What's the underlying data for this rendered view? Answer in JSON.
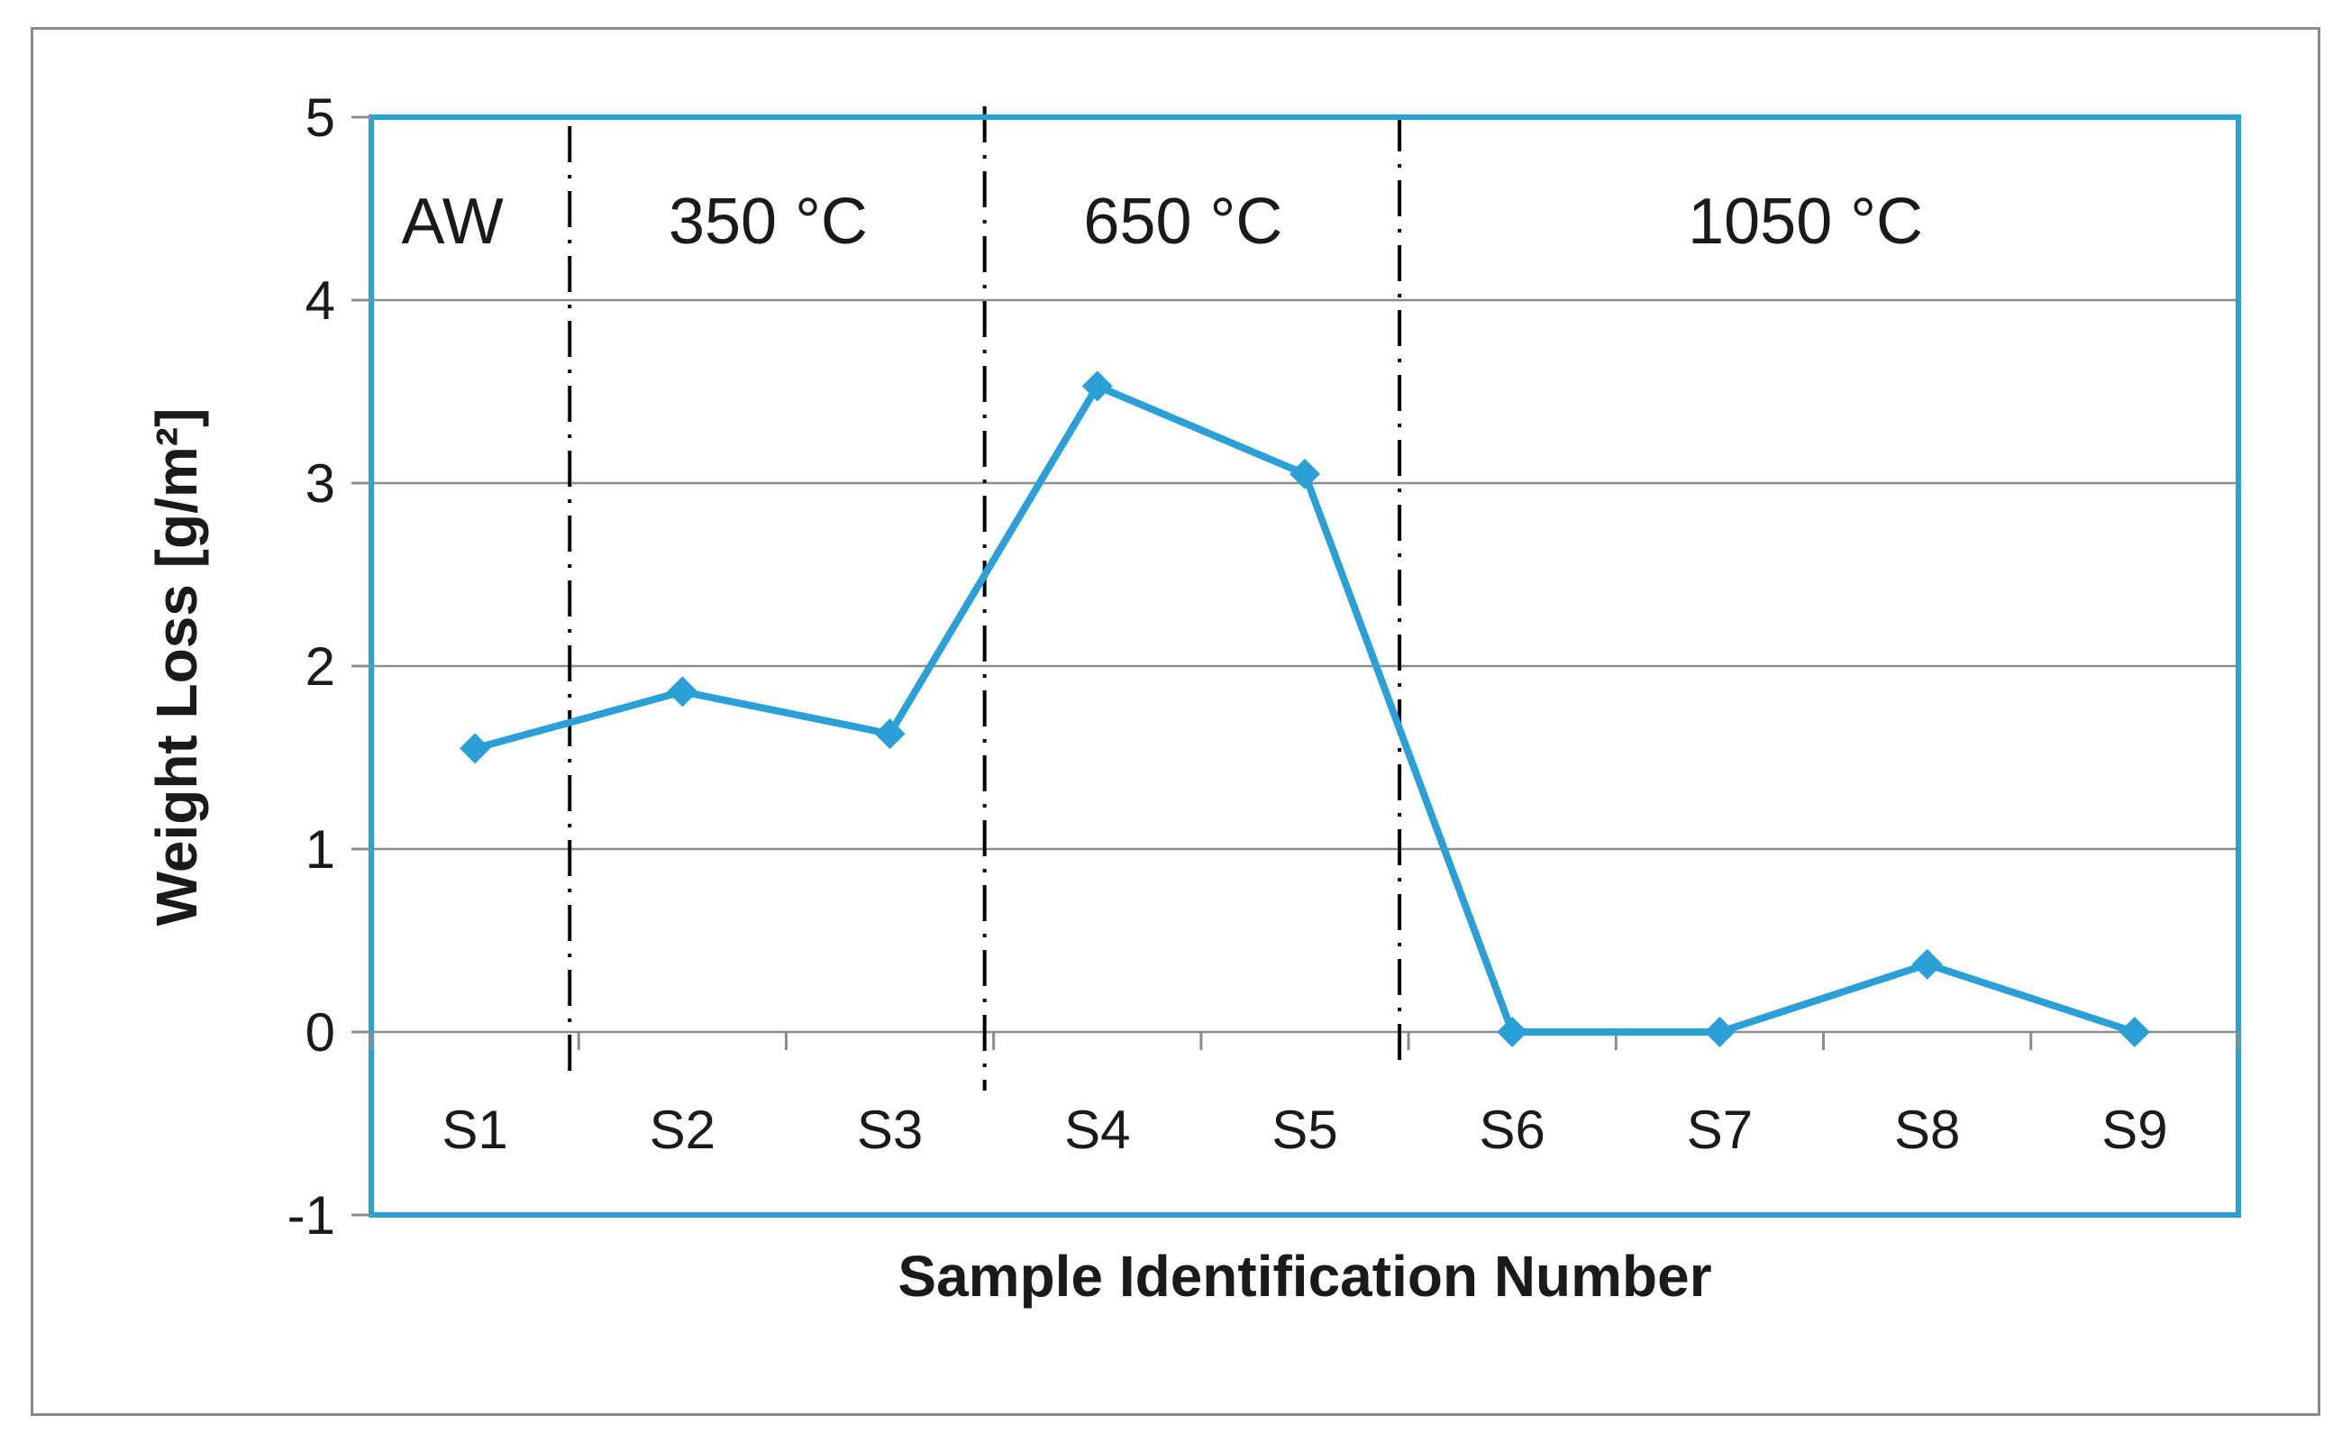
{
  "chart_data": {
    "type": "line",
    "title": "",
    "xlabel": "Sample Identification Number",
    "ylabel": "Weight Loss [g/m²]",
    "categories": [
      "S1",
      "S2",
      "S3",
      "S4",
      "S5",
      "S6",
      "S7",
      "S8",
      "S9"
    ],
    "series": [
      {
        "values": [
          1.55,
          1.86,
          1.63,
          3.53,
          3.05,
          0.0,
          0.0,
          0.37,
          0.0
        ],
        "color": "#2a9fd8",
        "marker": "diamond"
      }
    ],
    "ylim": [
      -1,
      5
    ],
    "yticks": [
      "5",
      "4",
      "3",
      "2",
      "1",
      "0",
      "-1"
    ],
    "grid": true,
    "legend": "none",
    "regions": [
      {
        "label": "AW"
      },
      {
        "label": "350 °C"
      },
      {
        "label": "650 °C"
      },
      {
        "label": "1050 °C"
      }
    ],
    "colors": {
      "plot_border": "#2a9fd8",
      "series": "#2a9fd8",
      "grid": "#8c8c8c",
      "divider": "#000000"
    }
  }
}
